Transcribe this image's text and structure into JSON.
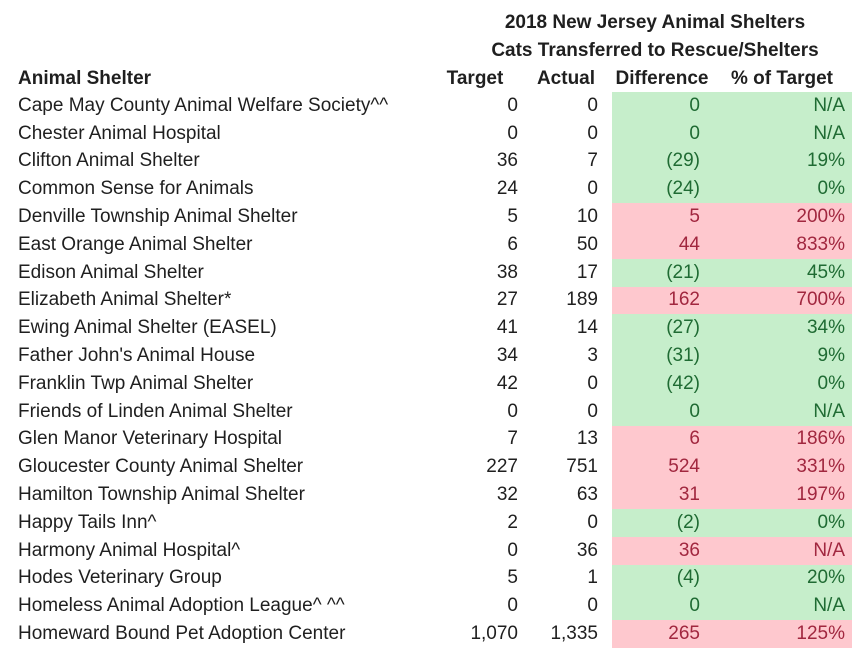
{
  "chart_data": {
    "type": "table",
    "title": "2018 New Jersey Animal Shelters",
    "subtitle": "Cats Transferred to Rescue/Shelters",
    "columns": [
      "Animal Shelter",
      "Target",
      "Actual",
      "Difference",
      "% of Target"
    ],
    "rows": [
      {
        "name": "Cape May County Animal Welfare Society^^",
        "target": "0",
        "actual": "0",
        "difference": "0",
        "pct_of_target": "N/A",
        "highlight": "green"
      },
      {
        "name": "Chester Animal Hospital",
        "target": "0",
        "actual": "0",
        "difference": "0",
        "pct_of_target": "N/A",
        "highlight": "green"
      },
      {
        "name": "Clifton Animal Shelter",
        "target": "36",
        "actual": "7",
        "difference": "(29)",
        "pct_of_target": "19%",
        "highlight": "green"
      },
      {
        "name": "Common Sense for Animals",
        "target": "24",
        "actual": "0",
        "difference": "(24)",
        "pct_of_target": "0%",
        "highlight": "green"
      },
      {
        "name": "Denville Township Animal Shelter",
        "target": "5",
        "actual": "10",
        "difference": "5",
        "pct_of_target": "200%",
        "highlight": "red"
      },
      {
        "name": "East Orange Animal Shelter",
        "target": "6",
        "actual": "50",
        "difference": "44",
        "pct_of_target": "833%",
        "highlight": "red"
      },
      {
        "name": "Edison Animal Shelter",
        "target": "38",
        "actual": "17",
        "difference": "(21)",
        "pct_of_target": "45%",
        "highlight": "green"
      },
      {
        "name": "Elizabeth Animal Shelter*",
        "target": "27",
        "actual": "189",
        "difference": "162",
        "pct_of_target": "700%",
        "highlight": "red"
      },
      {
        "name": "Ewing Animal Shelter (EASEL)",
        "target": "41",
        "actual": "14",
        "difference": "(27)",
        "pct_of_target": "34%",
        "highlight": "green"
      },
      {
        "name": "Father John's Animal House",
        "target": "34",
        "actual": "3",
        "difference": "(31)",
        "pct_of_target": "9%",
        "highlight": "green"
      },
      {
        "name": "Franklin Twp Animal Shelter",
        "target": "42",
        "actual": "0",
        "difference": "(42)",
        "pct_of_target": "0%",
        "highlight": "green"
      },
      {
        "name": "Friends of Linden Animal Shelter",
        "target": "0",
        "actual": "0",
        "difference": "0",
        "pct_of_target": "N/A",
        "highlight": "green"
      },
      {
        "name": "Glen Manor Veterinary Hospital",
        "target": "7",
        "actual": "13",
        "difference": "6",
        "pct_of_target": "186%",
        "highlight": "red"
      },
      {
        "name": "Gloucester County Animal Shelter",
        "target": "227",
        "actual": "751",
        "difference": "524",
        "pct_of_target": "331%",
        "highlight": "red"
      },
      {
        "name": "Hamilton Township Animal Shelter",
        "target": "32",
        "actual": "63",
        "difference": "31",
        "pct_of_target": "197%",
        "highlight": "red"
      },
      {
        "name": "Happy Tails Inn^",
        "target": "2",
        "actual": "0",
        "difference": "(2)",
        "pct_of_target": "0%",
        "highlight": "green"
      },
      {
        "name": "Harmony Animal Hospital^",
        "target": "0",
        "actual": "36",
        "difference": "36",
        "pct_of_target": "N/A",
        "highlight": "red"
      },
      {
        "name": "Hodes Veterinary Group",
        "target": "5",
        "actual": "1",
        "difference": "(4)",
        "pct_of_target": "20%",
        "highlight": "green"
      },
      {
        "name": "Homeless Animal Adoption League^ ^^",
        "target": "0",
        "actual": "0",
        "difference": "0",
        "pct_of_target": "N/A",
        "highlight": "green"
      },
      {
        "name": "Homeward Bound Pet Adoption Center",
        "target": "1,070",
        "actual": "1,335",
        "difference": "265",
        "pct_of_target": "125%",
        "highlight": "red"
      }
    ]
  },
  "colors": {
    "green_bg": "#c6eecb",
    "green_text": "#1f6b33",
    "red_bg": "#fec8ce",
    "red_text": "#a1273f",
    "body_text": "#1f1f1f",
    "page_bg": "#ffffff"
  }
}
